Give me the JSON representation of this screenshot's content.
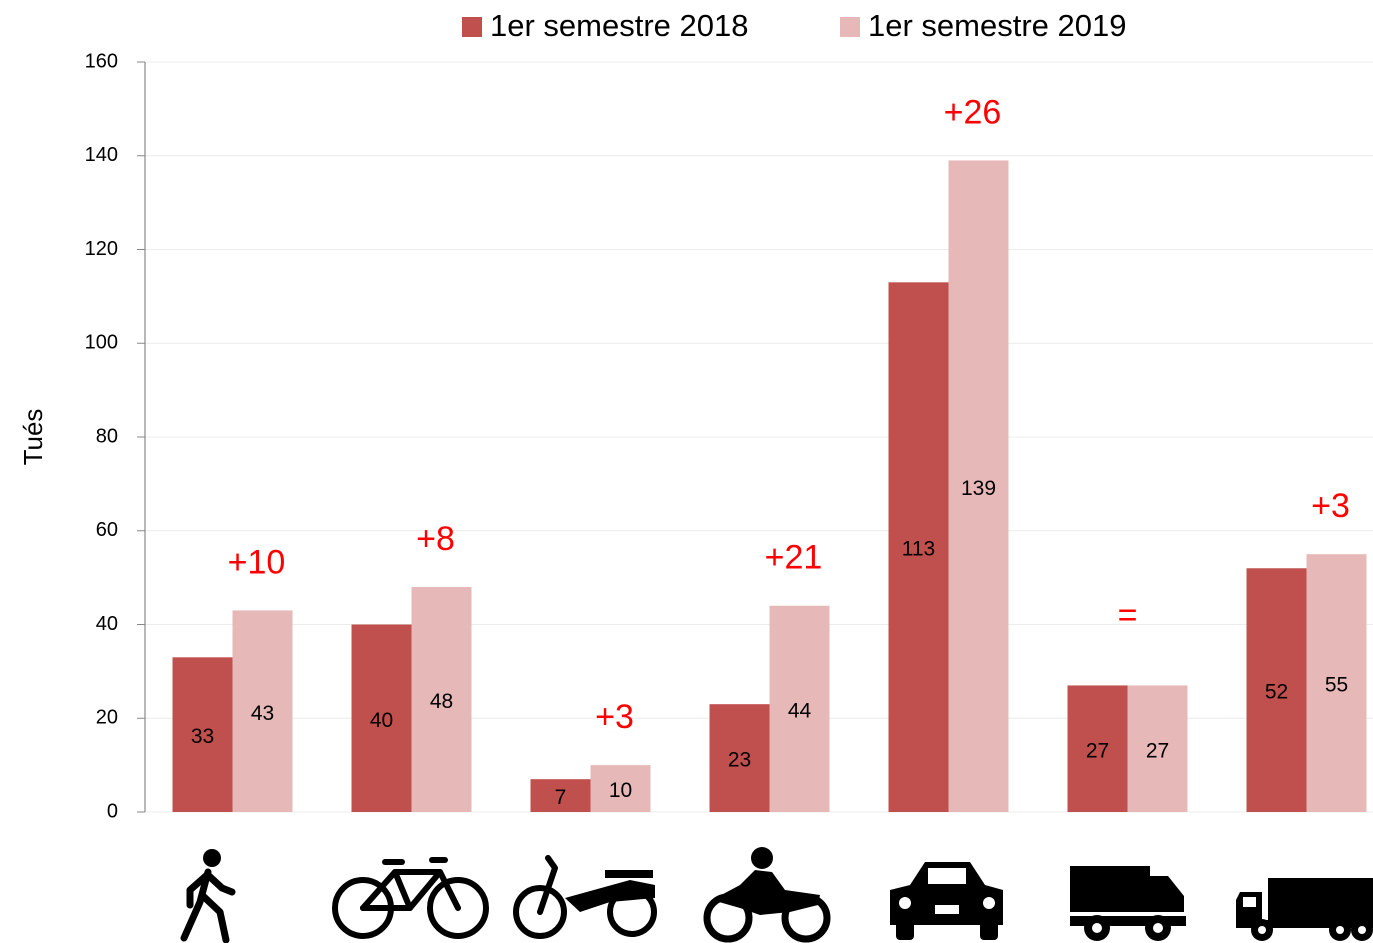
{
  "chart_data": {
    "type": "bar",
    "y_label": "Tués",
    "categories": [
      null,
      null,
      null,
      null,
      null,
      null,
      null
    ],
    "series": [
      {
        "name": "1er semestre 2018",
        "color": "#c0504d",
        "values": [
          33,
          40,
          7,
          23,
          113,
          27,
          52
        ]
      },
      {
        "name": "1er semestre 2019",
        "color": "#e6b9b8",
        "values": [
          43,
          48,
          10,
          44,
          139,
          27,
          55
        ]
      }
    ],
    "annotations": [
      "+10",
      "+8",
      "+3",
      "+21",
      "+26",
      "=",
      "+3"
    ],
    "annotation_color": "#ff0000",
    "ylim": [
      0,
      160
    ],
    "yticks": [
      0,
      20,
      40,
      60,
      80,
      100,
      120,
      140,
      160
    ],
    "grid": true,
    "legend": "top"
  }
}
